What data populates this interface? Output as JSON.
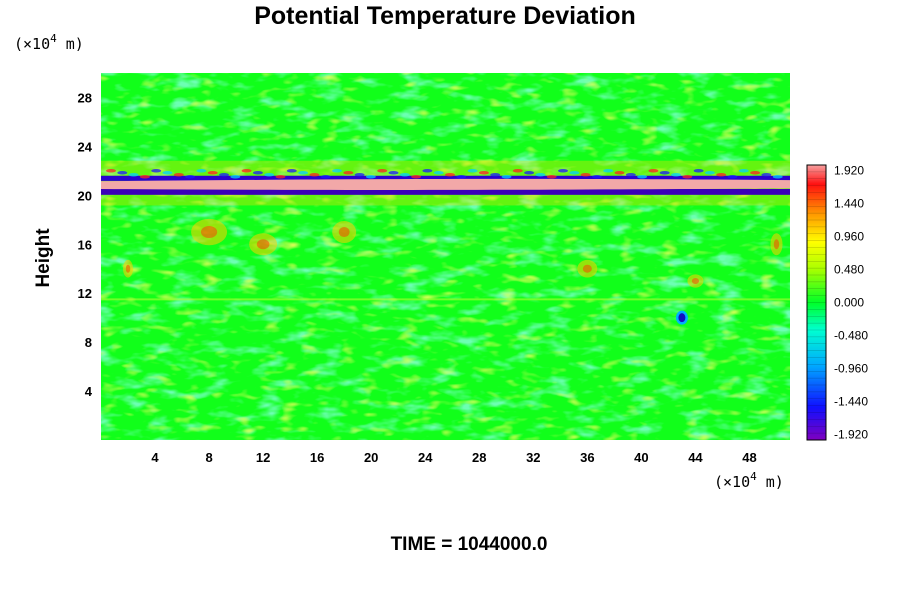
{
  "chart_data": {
    "type": "heatmap",
    "title": "Potential Temperature Deviation",
    "ylabel": "Height",
    "x_unit": {
      "prefix": "(×10",
      "exp": "4",
      "suffix": " m)"
    },
    "y_unit": {
      "prefix": "(×10",
      "exp": "4",
      "suffix": " m)"
    },
    "xlim": [
      0,
      51
    ],
    "ylim": [
      0,
      30
    ],
    "x_ticks": [
      "4",
      "8",
      "12",
      "16",
      "20",
      "24",
      "28",
      "32",
      "36",
      "40",
      "44",
      "48"
    ],
    "x_tick_values": [
      4,
      8,
      12,
      16,
      20,
      24,
      28,
      32,
      36,
      40,
      44,
      48
    ],
    "y_ticks": [
      "4",
      "8",
      "12",
      "16",
      "20",
      "24",
      "28"
    ],
    "y_tick_values": [
      4,
      8,
      12,
      16,
      20,
      24,
      28
    ],
    "colorbar": {
      "min": -2.0,
      "max": 2.0,
      "tick_labels": [
        "1.920",
        "1.440",
        "0.960",
        "0.480",
        "0.000",
        "-0.480",
        "-0.960",
        "-1.440",
        "-1.920"
      ],
      "tick_values": [
        1.92,
        1.44,
        0.96,
        0.48,
        0.0,
        -0.48,
        -0.96,
        -1.44,
        -1.92
      ]
    },
    "field_features": [
      {
        "desc": "strong alternating band near tropopause",
        "y_range": [
          19.5,
          22.5
        ],
        "value": 1.9
      },
      {
        "desc": "weak positive patches",
        "y_range": [
          12,
          19
        ],
        "value": 0.6
      },
      {
        "desc": "negative spot",
        "x": 43,
        "y": 10,
        "value": -1.6
      }
    ],
    "time_label": "TIME = 1044000.0"
  }
}
